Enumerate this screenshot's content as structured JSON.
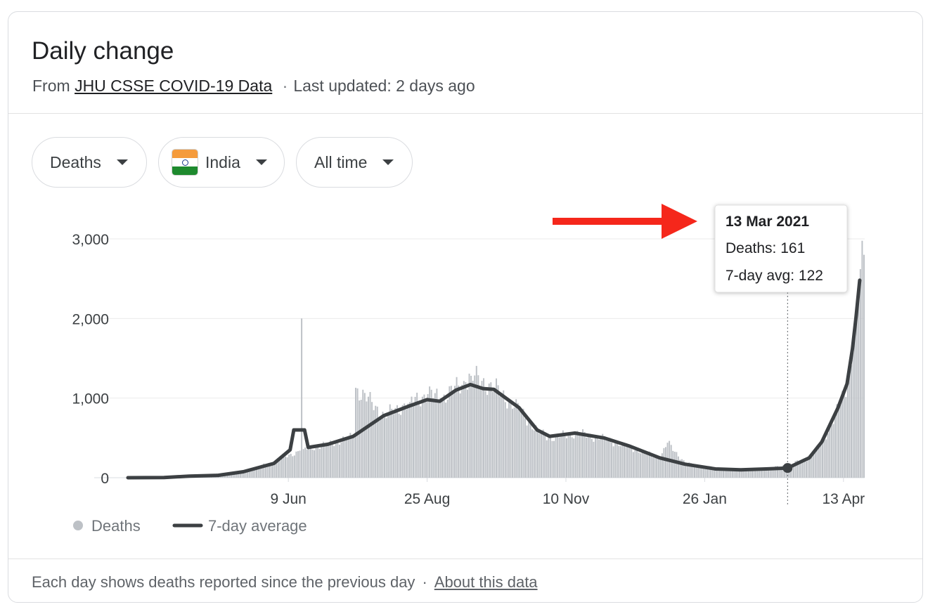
{
  "header": {
    "title": "Daily change",
    "source_prefix": "From",
    "source_link": "JHU CSSE COVID-19 Data",
    "separator": "·",
    "updated": "Last updated: 2 days ago"
  },
  "filters": [
    {
      "label": "Deaths"
    },
    {
      "label": "India",
      "icon": "india-flag-icon"
    },
    {
      "label": "All time"
    }
  ],
  "tooltip": {
    "date": "13 Mar 2021",
    "deaths_line": "Deaths: 161",
    "avg_line": "7-day avg: 122"
  },
  "legend": {
    "deaths": "Deaths",
    "average": "7-day average"
  },
  "footer": {
    "note": "Each day shows deaths reported since the previous day",
    "separator": "·",
    "link": "About this data"
  },
  "colors": {
    "bars": "#bdc1c6",
    "line": "#3c4043",
    "arrow": "#f5271b",
    "grid": "#ebebeb"
  },
  "chart_data": {
    "type": "bar",
    "title": "",
    "xlabel": "",
    "ylabel": "",
    "ylim": [
      0,
      3000
    ],
    "yticks": [
      {
        "value": 0,
        "label": "0"
      },
      {
        "value": 1000,
        "label": "1,000"
      },
      {
        "value": 2000,
        "label": "2,000"
      },
      {
        "value": 3000,
        "label": "3,000"
      }
    ],
    "xticks": [
      {
        "label": "9 Jun",
        "date": "2020-06-09"
      },
      {
        "label": "25 Aug",
        "date": "2020-08-25"
      },
      {
        "label": "10 Nov",
        "date": "2020-11-10"
      },
      {
        "label": "26 Jan",
        "date": "2021-01-26"
      },
      {
        "label": "13 Apr",
        "date": "2021-04-13"
      }
    ],
    "xrange": [
      "2020-03-12",
      "2021-04-24"
    ],
    "highlight": {
      "date": "2021-03-13",
      "deaths": 161,
      "avg": 122
    },
    "series": [
      {
        "name": "Deaths",
        "kind": "bars",
        "points": [
          [
            "2020-03-12",
            0
          ],
          [
            "2020-04-01",
            5
          ],
          [
            "2020-04-15",
            20
          ],
          [
            "2020-05-01",
            50
          ],
          [
            "2020-05-15",
            85
          ],
          [
            "2020-06-01",
            200
          ],
          [
            "2020-06-15",
            340
          ],
          [
            "2020-06-16",
            2000
          ],
          [
            "2020-06-17",
            360
          ],
          [
            "2020-07-01",
            420
          ],
          [
            "2020-07-15",
            520
          ],
          [
            "2020-07-16",
            1130
          ],
          [
            "2020-08-01",
            780
          ],
          [
            "2020-08-15",
            950
          ],
          [
            "2020-08-25",
            1050
          ],
          [
            "2020-09-01",
            1000
          ],
          [
            "2020-09-15",
            1200
          ],
          [
            "2020-09-18",
            1280
          ],
          [
            "2020-10-01",
            1130
          ],
          [
            "2020-10-15",
            850
          ],
          [
            "2020-10-25",
            580
          ],
          [
            "2020-11-01",
            500
          ],
          [
            "2020-11-15",
            560
          ],
          [
            "2020-12-01",
            490
          ],
          [
            "2020-12-15",
            380
          ],
          [
            "2021-01-01",
            250
          ],
          [
            "2021-01-05",
            440
          ],
          [
            "2021-01-15",
            180
          ],
          [
            "2021-02-01",
            120
          ],
          [
            "2021-02-15",
            100
          ],
          [
            "2021-03-01",
            110
          ],
          [
            "2021-03-13",
            161
          ],
          [
            "2021-03-25",
            250
          ],
          [
            "2021-04-01",
            450
          ],
          [
            "2021-04-10",
            880
          ],
          [
            "2021-04-15",
            1180
          ],
          [
            "2021-04-18",
            1620
          ],
          [
            "2021-04-20",
            2020
          ],
          [
            "2021-04-22",
            2620
          ],
          [
            "2021-04-24",
            2800
          ]
        ]
      },
      {
        "name": "7-day average",
        "kind": "line",
        "points": [
          [
            "2020-03-12",
            0
          ],
          [
            "2020-04-01",
            2
          ],
          [
            "2020-04-15",
            20
          ],
          [
            "2020-05-01",
            30
          ],
          [
            "2020-05-15",
            75
          ],
          [
            "2020-06-01",
            180
          ],
          [
            "2020-06-10",
            350
          ],
          [
            "2020-06-12",
            600
          ],
          [
            "2020-06-18",
            600
          ],
          [
            "2020-06-20",
            380
          ],
          [
            "2020-07-01",
            420
          ],
          [
            "2020-07-15",
            520
          ],
          [
            "2020-08-01",
            780
          ],
          [
            "2020-08-15",
            900
          ],
          [
            "2020-08-25",
            980
          ],
          [
            "2020-09-01",
            960
          ],
          [
            "2020-09-10",
            1100
          ],
          [
            "2020-09-18",
            1170
          ],
          [
            "2020-09-25",
            1120
          ],
          [
            "2020-10-01",
            1110
          ],
          [
            "2020-10-15",
            880
          ],
          [
            "2020-10-25",
            600
          ],
          [
            "2020-11-01",
            520
          ],
          [
            "2020-11-15",
            560
          ],
          [
            "2020-12-01",
            500
          ],
          [
            "2020-12-15",
            400
          ],
          [
            "2021-01-01",
            250
          ],
          [
            "2021-01-15",
            170
          ],
          [
            "2021-02-01",
            110
          ],
          [
            "2021-02-15",
            100
          ],
          [
            "2021-03-01",
            110
          ],
          [
            "2021-03-13",
            122
          ],
          [
            "2021-03-25",
            250
          ],
          [
            "2021-04-01",
            450
          ],
          [
            "2021-04-10",
            880
          ],
          [
            "2021-04-15",
            1180
          ],
          [
            "2021-04-18",
            1620
          ],
          [
            "2021-04-20",
            2020
          ],
          [
            "2021-04-22",
            2480
          ]
        ]
      }
    ]
  }
}
